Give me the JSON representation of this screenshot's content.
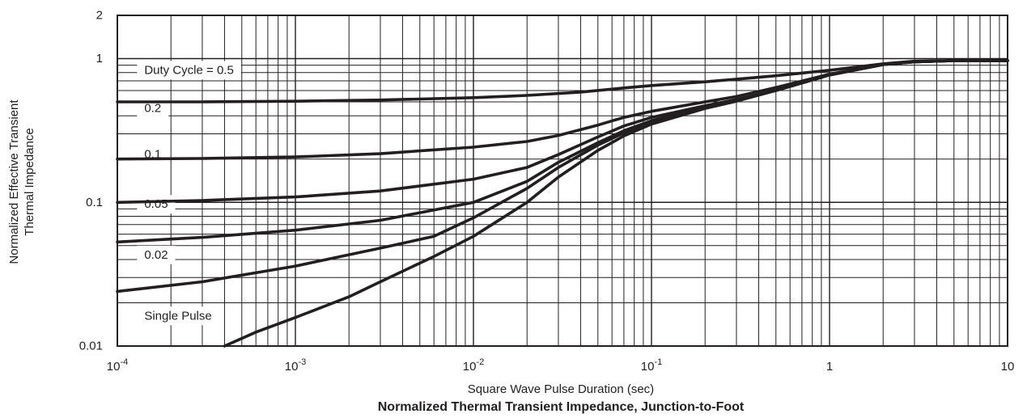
{
  "chart_data": {
    "type": "line",
    "title": "Normalized Thermal Transient Impedance, Junction-to-Foot",
    "xlabel": "Square Wave Pulse Duration (sec)",
    "ylabel": [
      "Normalized Effective Transient",
      "Thermal Impedance"
    ],
    "x_scale": "log",
    "y_scale": "log",
    "xlim": [
      0.0001,
      10
    ],
    "ylim": [
      0.01,
      2
    ],
    "grid": true,
    "x_ticks": [
      {
        "base": "10",
        "exp": "-4",
        "value": 0.0001
      },
      {
        "base": "10",
        "exp": "-3",
        "value": 0.001
      },
      {
        "base": "10",
        "exp": "-2",
        "value": 0.01
      },
      {
        "base": "10",
        "exp": "-1",
        "value": 0.1
      },
      {
        "base": "1",
        "exp": "",
        "value": 1
      },
      {
        "base": "10",
        "exp": "",
        "value": 10
      }
    ],
    "y_ticks": [
      {
        "label": "0.01",
        "value": 0.01
      },
      {
        "label": "0.1",
        "value": 0.1
      },
      {
        "label": "1",
        "value": 1
      },
      {
        "label": "2",
        "value": 2
      }
    ],
    "series": [
      {
        "name": "Duty Cycle = 0.5",
        "label_at": [
          0.000115,
          0.83
        ],
        "x": [
          0.0001,
          0.0003,
          0.001,
          0.003,
          0.01,
          0.02,
          0.04,
          0.07,
          0.1,
          0.2,
          0.3,
          0.5,
          1,
          2,
          3,
          5,
          10
        ],
        "y": [
          0.5,
          0.5,
          0.505,
          0.515,
          0.535,
          0.555,
          0.585,
          0.625,
          0.65,
          0.69,
          0.72,
          0.76,
          0.83,
          0.92,
          0.96,
          0.97,
          0.97
        ]
      },
      {
        "name": "0.2",
        "label_at": [
          0.000115,
          0.45
        ],
        "x": [
          0.0001,
          0.0003,
          0.001,
          0.003,
          0.005,
          0.01,
          0.02,
          0.03,
          0.05,
          0.07,
          0.1,
          0.2,
          0.3,
          0.5,
          1,
          2,
          3,
          5,
          10
        ],
        "y": [
          0.2,
          0.202,
          0.207,
          0.218,
          0.228,
          0.242,
          0.265,
          0.292,
          0.345,
          0.39,
          0.43,
          0.5,
          0.545,
          0.63,
          0.78,
          0.91,
          0.95,
          0.97,
          0.97
        ]
      },
      {
        "name": "0.1",
        "label_at": [
          0.000115,
          0.215
        ],
        "x": [
          0.0001,
          0.0003,
          0.001,
          0.003,
          0.01,
          0.02,
          0.03,
          0.05,
          0.07,
          0.1,
          0.2,
          0.3,
          0.5,
          1,
          2,
          3,
          5,
          10
        ],
        "y": [
          0.1,
          0.103,
          0.109,
          0.12,
          0.145,
          0.175,
          0.215,
          0.285,
          0.34,
          0.39,
          0.47,
          0.52,
          0.6,
          0.77,
          0.91,
          0.95,
          0.97,
          0.97
        ]
      },
      {
        "name": "0.05",
        "label_at": [
          0.000115,
          0.097
        ],
        "x": [
          0.0001,
          0.0003,
          0.001,
          0.003,
          0.01,
          0.02,
          0.03,
          0.05,
          0.07,
          0.1,
          0.2,
          0.3,
          0.5,
          1,
          2,
          3,
          5,
          10
        ],
        "y": [
          0.053,
          0.057,
          0.064,
          0.075,
          0.1,
          0.14,
          0.19,
          0.26,
          0.315,
          0.37,
          0.46,
          0.515,
          0.6,
          0.77,
          0.91,
          0.95,
          0.97,
          0.97
        ]
      },
      {
        "name": "0.02",
        "label_at": [
          0.000115,
          0.043
        ],
        "x": [
          0.0001,
          0.0003,
          0.001,
          0.003,
          0.006,
          0.01,
          0.02,
          0.03,
          0.05,
          0.07,
          0.1,
          0.2,
          0.3,
          0.5,
          1,
          2,
          3,
          5,
          10
        ],
        "y": [
          0.024,
          0.028,
          0.036,
          0.048,
          0.058,
          0.078,
          0.125,
          0.175,
          0.25,
          0.305,
          0.36,
          0.455,
          0.51,
          0.6,
          0.77,
          0.91,
          0.95,
          0.97,
          0.97
        ]
      },
      {
        "name": "Single Pulse",
        "label_at": [
          0.000115,
          0.0162
        ],
        "x": [
          0.0004,
          0.0006,
          0.001,
          0.002,
          0.003,
          0.006,
          0.01,
          0.02,
          0.03,
          0.05,
          0.07,
          0.1,
          0.2,
          0.3,
          0.5,
          1,
          2,
          3,
          5,
          10
        ],
        "y": [
          0.01,
          0.0125,
          0.0158,
          0.022,
          0.028,
          0.042,
          0.058,
          0.1,
          0.15,
          0.23,
          0.29,
          0.35,
          0.45,
          0.505,
          0.6,
          0.77,
          0.91,
          0.95,
          0.97,
          0.97
        ]
      }
    ],
    "label_background": "#ffffff",
    "line_color": "#231f20",
    "grid_color": "#231f20",
    "background": "#ffffff"
  }
}
